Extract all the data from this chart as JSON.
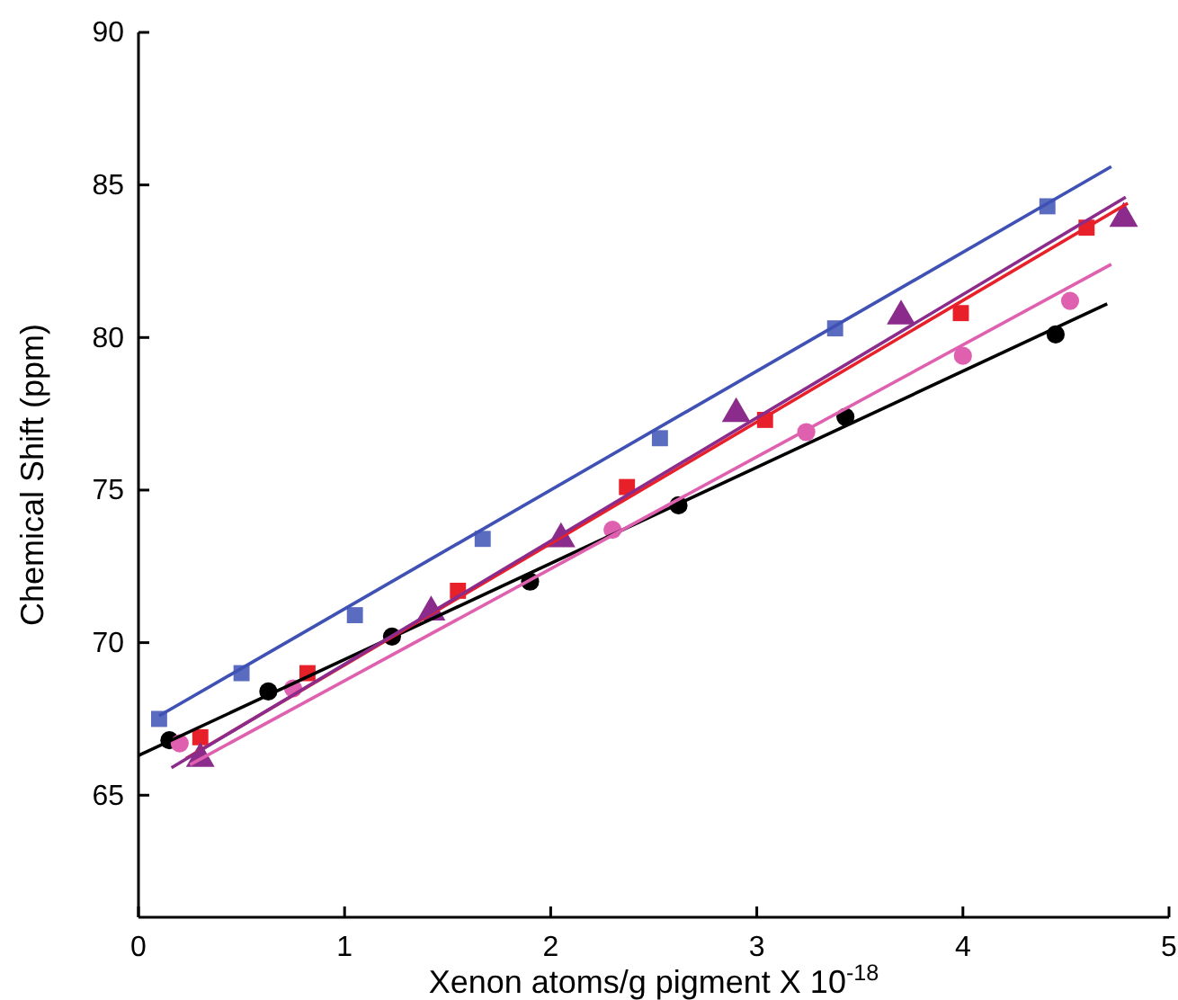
{
  "chart_data": {
    "type": "scatter",
    "xlabel": "Xenon atoms/g pigment X 10$^{-18}$",
    "ylabel": "Chemical Shift (ppm)",
    "xlim": [
      0,
      5
    ],
    "ylim": [
      61,
      90
    ],
    "xticks": [
      0,
      1,
      2,
      3,
      4,
      5
    ],
    "yticks": [
      65,
      70,
      75,
      80,
      85,
      90
    ],
    "grid": false,
    "series": [
      {
        "marker": "square",
        "color": "#5a6cc0",
        "x": [
          0.1,
          0.5,
          1.05,
          1.67,
          2.53,
          3.38,
          4.41
        ],
        "values": [
          67.5,
          69.0,
          70.9,
          73.4,
          76.7,
          80.3,
          84.3
        ]
      },
      {
        "marker": "circle",
        "color": "#000000",
        "x": [
          0.15,
          0.63,
          1.23,
          1.9,
          2.62,
          3.43,
          4.45
        ],
        "values": [
          66.8,
          68.4,
          70.2,
          72.0,
          74.5,
          77.4,
          80.1
        ]
      },
      {
        "marker": "square",
        "color": "#e8202a",
        "x": [
          0.3,
          0.82,
          1.55,
          2.37,
          3.04,
          3.99,
          4.6
        ],
        "values": [
          66.9,
          69.0,
          71.7,
          75.1,
          77.3,
          80.8,
          83.6
        ]
      },
      {
        "marker": "triangle",
        "color": "#8b2b8b",
        "x": [
          0.3,
          1.42,
          2.05,
          2.9,
          3.7,
          4.78
        ],
        "values": [
          66.2,
          71.0,
          73.4,
          77.5,
          80.7,
          83.9
        ]
      },
      {
        "marker": "circle",
        "color": "#e060b0",
        "x": [
          0.2,
          0.75,
          2.3,
          3.24,
          4.0,
          4.52
        ],
        "values": [
          66.7,
          68.5,
          73.7,
          76.9,
          79.4,
          81.2
        ]
      },
      {
        "type": "line",
        "marker": "none",
        "color": "#3f51b5",
        "x": [
          0.1,
          4.72
        ],
        "values": [
          67.6,
          85.6
        ]
      },
      {
        "type": "line",
        "marker": "none",
        "color": "#000000",
        "x": [
          0,
          4.7
        ],
        "values": [
          66.3,
          81.1
        ]
      },
      {
        "type": "line",
        "marker": "none",
        "color": "#e8202a",
        "x": [
          0.23,
          4.8
        ],
        "values": [
          66.2,
          84.4
        ]
      },
      {
        "type": "line",
        "marker": "none",
        "color": "#8b2b8b",
        "x": [
          0.16,
          4.79
        ],
        "values": [
          65.9,
          84.6
        ]
      },
      {
        "type": "line",
        "marker": "none",
        "color": "#e060b0",
        "x": [
          0.25,
          4.72
        ],
        "values": [
          66.0,
          82.4
        ]
      }
    ]
  }
}
